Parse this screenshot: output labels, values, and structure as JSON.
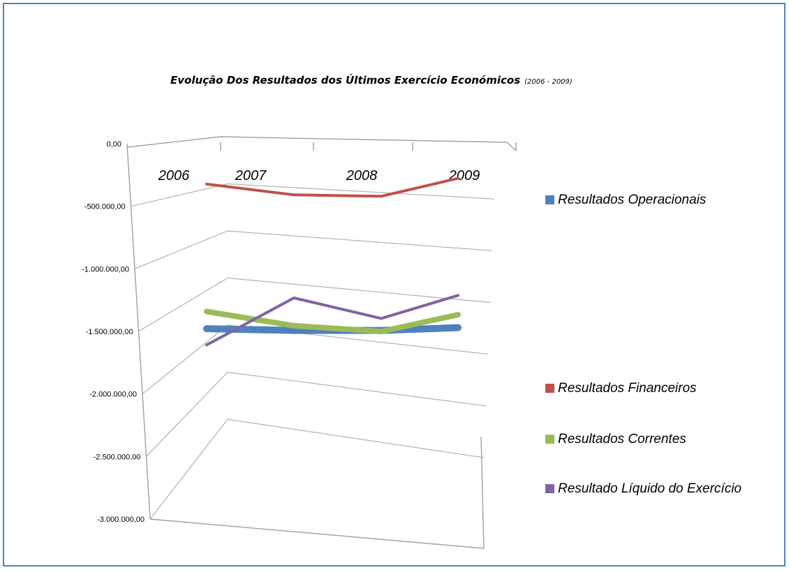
{
  "chart_data": {
    "type": "line",
    "title": "Evolução  Dos Resultados dos Últimos Exercício Económicos",
    "subtitle": "(2006 - 2009)",
    "categories": [
      "2006",
      "2007",
      "2008",
      "2009"
    ],
    "y_tick_labels": [
      "0,00",
      "-500.000,00",
      "-1.000.000,00",
      "-1.500.000,00",
      "-2.000.000,00",
      "-2.500.000,00",
      "-3.000.000,00"
    ],
    "ylim": [
      -3000000,
      0
    ],
    "grid": true,
    "legend_position": "right",
    "series": [
      {
        "name": "Resultados Operacionais",
        "color": "#4f81bd",
        "values": [
          -1900000,
          -1780000,
          -1660000,
          -1530000
        ]
      },
      {
        "name": "Resultados Financeiros",
        "color": "#c0504d",
        "values": [
          -210000,
          -320000,
          -320000,
          -140000
        ]
      },
      {
        "name": "Resultados Correntes",
        "color": "#9bbb59",
        "values": [
          -1700000,
          -1730000,
          -1670000,
          -1410000
        ]
      },
      {
        "name": "Resultado Líquido do Exercício",
        "color": "#8064a2",
        "values": [
          -2090000,
          -1430000,
          -1540000,
          -1230000
        ]
      }
    ]
  }
}
